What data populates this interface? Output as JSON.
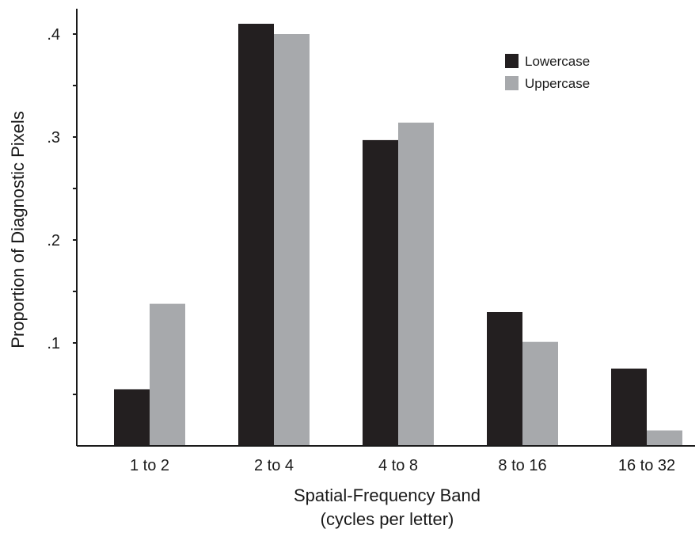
{
  "chart_data": {
    "type": "bar",
    "title": "",
    "categories": [
      "1 to 2",
      "2 to 4",
      "4 to 8",
      "8 to 16",
      "16 to 32"
    ],
    "series": [
      {
        "name": "Lowercase",
        "color": "#231f20",
        "values": [
          0.055,
          0.41,
          0.297,
          0.13,
          0.075
        ]
      },
      {
        "name": "Uppercase",
        "color": "#a7a9ac",
        "values": [
          0.138,
          0.4,
          0.314,
          0.101,
          0.015
        ]
      }
    ],
    "xlabel": "Spatial-Frequency Band",
    "xlabel_sub": "(cycles per letter)",
    "ylabel": "Proportion of Diagnostic Pixels",
    "ylim": [
      0,
      0.415
    ],
    "yticks": [
      {
        "value": 0.1,
        "label": ".1"
      },
      {
        "value": 0.2,
        "label": ".2"
      },
      {
        "value": 0.3,
        "label": ".3"
      },
      {
        "value": 0.4,
        "label": ".4"
      }
    ],
    "minor_yticks": [
      0.05,
      0.15,
      0.25,
      0.35
    ],
    "legend_position": "top-right",
    "grid": false
  }
}
